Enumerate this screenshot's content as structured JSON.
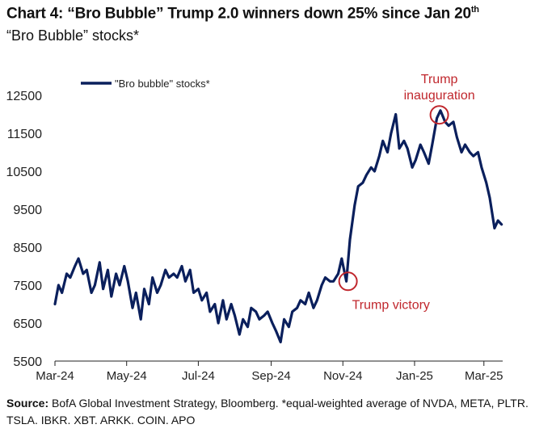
{
  "header": {
    "title": "Chart 4: “Bro Bubble” Trump 2.0 winners down 25% since Jan 20",
    "title_sup": "th",
    "subtitle": "“Bro Bubble” stocks*"
  },
  "footer": {
    "source_label": "Source:",
    "source_text": " BofA Global Investment Strategy, Bloomberg. *equal-weighted average of NVDA, META, PLTR. TSLA. IBKR. XBT. ARKK. COIN. APO"
  },
  "chart_data": {
    "type": "line",
    "title": "",
    "xlabel": "",
    "ylabel": "",
    "ylim": [
      5500,
      12500
    ],
    "y_ticks": [
      5500,
      6500,
      7500,
      8500,
      9500,
      10500,
      11500,
      12500
    ],
    "x_ticks": [
      "Mar-24",
      "May-24",
      "Jul-24",
      "Sep-24",
      "Nov-24",
      "Jan-25",
      "Mar-25"
    ],
    "x_tick_dates": [
      "2024-03-01",
      "2024-05-01",
      "2024-07-01",
      "2024-09-01",
      "2024-11-01",
      "2025-01-01",
      "2025-03-01"
    ],
    "grid": false,
    "legend_position": "top-left",
    "line_color": "#0a1f5c",
    "annotation_color": "#c0272d",
    "series": [
      {
        "name": "\"Bro bubble\" stocks*",
        "points": [
          [
            "2024-03-01",
            7000
          ],
          [
            "2024-03-04",
            7500
          ],
          [
            "2024-03-07",
            7300
          ],
          [
            "2024-03-11",
            7800
          ],
          [
            "2024-03-14",
            7700
          ],
          [
            "2024-03-18",
            8000
          ],
          [
            "2024-03-21",
            8200
          ],
          [
            "2024-03-25",
            7800
          ],
          [
            "2024-03-28",
            7900
          ],
          [
            "2024-04-01",
            7300
          ],
          [
            "2024-04-04",
            7500
          ],
          [
            "2024-04-08",
            8100
          ],
          [
            "2024-04-11",
            7400
          ],
          [
            "2024-04-15",
            7900
          ],
          [
            "2024-04-18",
            7200
          ],
          [
            "2024-04-22",
            7800
          ],
          [
            "2024-04-25",
            7500
          ],
          [
            "2024-04-29",
            8000
          ],
          [
            "2024-05-02",
            7600
          ],
          [
            "2024-05-06",
            6900
          ],
          [
            "2024-05-09",
            7300
          ],
          [
            "2024-05-13",
            6600
          ],
          [
            "2024-05-16",
            7400
          ],
          [
            "2024-05-20",
            7000
          ],
          [
            "2024-05-23",
            7700
          ],
          [
            "2024-05-27",
            7300
          ],
          [
            "2024-05-30",
            7500
          ],
          [
            "2024-06-03",
            7900
          ],
          [
            "2024-06-06",
            7700
          ],
          [
            "2024-06-10",
            7800
          ],
          [
            "2024-06-13",
            7700
          ],
          [
            "2024-06-17",
            8000
          ],
          [
            "2024-06-20",
            7600
          ],
          [
            "2024-06-24",
            7900
          ],
          [
            "2024-06-27",
            7300
          ],
          [
            "2024-07-01",
            7400
          ],
          [
            "2024-07-04",
            7100
          ],
          [
            "2024-07-08",
            7300
          ],
          [
            "2024-07-11",
            6800
          ],
          [
            "2024-07-15",
            7000
          ],
          [
            "2024-07-18",
            6500
          ],
          [
            "2024-07-22",
            7100
          ],
          [
            "2024-07-25",
            6600
          ],
          [
            "2024-07-29",
            7000
          ],
          [
            "2024-08-01",
            6700
          ],
          [
            "2024-08-05",
            6200
          ],
          [
            "2024-08-08",
            6600
          ],
          [
            "2024-08-12",
            6400
          ],
          [
            "2024-08-15",
            6900
          ],
          [
            "2024-08-19",
            6800
          ],
          [
            "2024-08-22",
            6600
          ],
          [
            "2024-08-26",
            6700
          ],
          [
            "2024-08-29",
            6800
          ],
          [
            "2024-09-02",
            6500
          ],
          [
            "2024-09-05",
            6300
          ],
          [
            "2024-09-09",
            6000
          ],
          [
            "2024-09-12",
            6600
          ],
          [
            "2024-09-16",
            6400
          ],
          [
            "2024-09-19",
            6800
          ],
          [
            "2024-09-23",
            6900
          ],
          [
            "2024-09-26",
            7100
          ],
          [
            "2024-09-30",
            7000
          ],
          [
            "2024-10-03",
            7300
          ],
          [
            "2024-10-07",
            6900
          ],
          [
            "2024-10-10",
            7100
          ],
          [
            "2024-10-14",
            7500
          ],
          [
            "2024-10-17",
            7700
          ],
          [
            "2024-10-21",
            7600
          ],
          [
            "2024-10-24",
            7600
          ],
          [
            "2024-10-28",
            7800
          ],
          [
            "2024-10-31",
            8200
          ],
          [
            "2024-11-04",
            7600
          ],
          [
            "2024-11-07",
            8700
          ],
          [
            "2024-11-11",
            9600
          ],
          [
            "2024-11-14",
            10100
          ],
          [
            "2024-11-18",
            10200
          ],
          [
            "2024-11-21",
            10400
          ],
          [
            "2024-11-25",
            10600
          ],
          [
            "2024-11-28",
            10500
          ],
          [
            "2024-12-02",
            10900
          ],
          [
            "2024-12-05",
            11300
          ],
          [
            "2024-12-09",
            11000
          ],
          [
            "2024-12-12",
            11500
          ],
          [
            "2024-12-16",
            12000
          ],
          [
            "2024-12-19",
            11100
          ],
          [
            "2024-12-23",
            11300
          ],
          [
            "2024-12-26",
            11100
          ],
          [
            "2024-12-30",
            10600
          ],
          [
            "2025-01-02",
            10800
          ],
          [
            "2025-01-06",
            11200
          ],
          [
            "2025-01-09",
            11000
          ],
          [
            "2025-01-13",
            10700
          ],
          [
            "2025-01-16",
            11200
          ],
          [
            "2025-01-20",
            11900
          ],
          [
            "2025-01-23",
            12100
          ],
          [
            "2025-01-27",
            11800
          ],
          [
            "2025-01-30",
            11700
          ],
          [
            "2025-02-03",
            11800
          ],
          [
            "2025-02-06",
            11400
          ],
          [
            "2025-02-10",
            11000
          ],
          [
            "2025-02-13",
            11200
          ],
          [
            "2025-02-17",
            11000
          ],
          [
            "2025-02-20",
            10900
          ],
          [
            "2025-02-24",
            11000
          ],
          [
            "2025-02-27",
            10600
          ],
          [
            "2025-03-03",
            10200
          ],
          [
            "2025-03-06",
            9800
          ],
          [
            "2025-03-10",
            9000
          ],
          [
            "2025-03-13",
            9200
          ],
          [
            "2025-03-16",
            9100
          ]
        ]
      }
    ],
    "annotations": [
      {
        "text": "Trump victory",
        "date": "2024-11-04",
        "value": 7600
      },
      {
        "text": "Trump",
        "text_line2": "inauguration",
        "date": "2025-01-20",
        "value": 11900
      }
    ]
  }
}
